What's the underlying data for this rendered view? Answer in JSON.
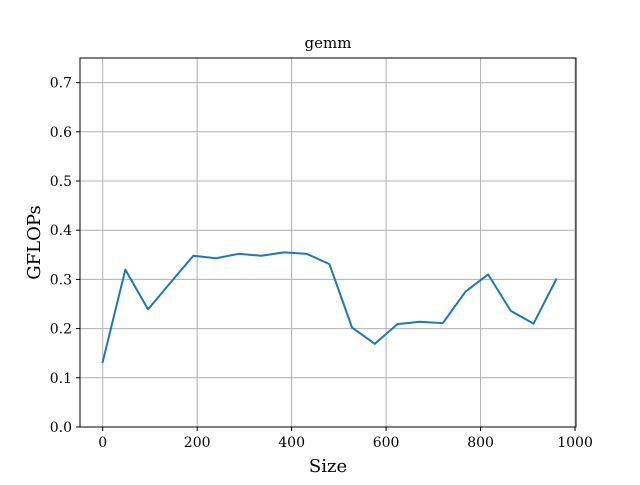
{
  "chart_data": {
    "type": "line",
    "title": "gemm",
    "xlabel": "Size",
    "ylabel": "GFLOPs",
    "xlim": [
      -48,
      1002
    ],
    "ylim": [
      0,
      0.75
    ],
    "xticks": [
      0,
      200,
      400,
      600,
      800,
      1000
    ],
    "xtick_labels": [
      "0",
      "200",
      "400",
      "600",
      "800",
      "1000"
    ],
    "yticks": [
      0.0,
      0.1,
      0.2,
      0.3,
      0.4,
      0.5,
      0.6,
      0.7
    ],
    "ytick_labels": [
      "0.0",
      "0.1",
      "0.2",
      "0.3",
      "0.4",
      "0.5",
      "0.6",
      "0.7"
    ],
    "grid": true,
    "series": [
      {
        "color": "#1f77b4",
        "x": [
          0,
          48,
          96,
          144,
          192,
          240,
          288,
          336,
          384,
          432,
          480,
          528,
          576,
          624,
          672,
          720,
          768,
          816,
          864,
          912,
          960
        ],
        "y": [
          0.132,
          0.32,
          0.239,
          0.294,
          0.348,
          0.343,
          0.352,
          0.348,
          0.355,
          0.352,
          0.331,
          0.202,
          0.169,
          0.209,
          0.214,
          0.211,
          0.275,
          0.31,
          0.236,
          0.21,
          0.3
        ]
      }
    ]
  }
}
